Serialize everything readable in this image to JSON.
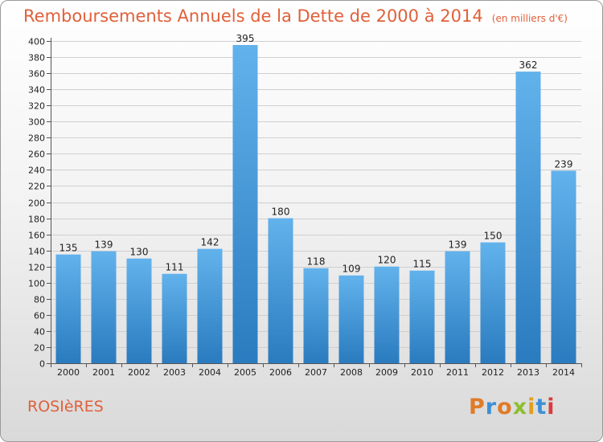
{
  "chart_data": {
    "type": "bar",
    "title": "Remboursements Annuels de la Dette de 2000 à 2014",
    "subtitle": "(en milliers d'€)",
    "categories": [
      "2000",
      "2001",
      "2002",
      "2003",
      "2004",
      "2005",
      "2006",
      "2007",
      "2008",
      "2009",
      "2010",
      "2011",
      "2012",
      "2013",
      "2014"
    ],
    "values": [
      135,
      139,
      130,
      111,
      142,
      395,
      180,
      118,
      109,
      120,
      115,
      139,
      150,
      362,
      239
    ],
    "ylim": [
      0,
      400
    ],
    "ytick_step": 20,
    "grid": true,
    "legend": "none",
    "bar_color": "#4a9fe0",
    "bar_color_light": "#62b2ec",
    "bar_color_dark": "#2a7bbf"
  },
  "footer": {
    "commune": "ROSIèRES",
    "brand": "Proxiti",
    "brand_colors": [
      "#e07b28",
      "#3d8fd6",
      "#e07b28",
      "#8cbf2e",
      "#e0a01e",
      "#3d8fd6",
      "#d93c3c"
    ]
  }
}
